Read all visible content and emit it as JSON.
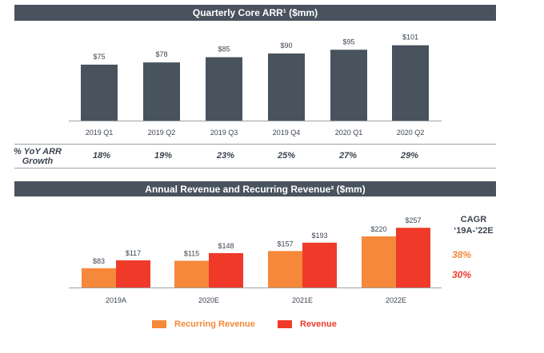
{
  "chart_data": [
    {
      "type": "bar",
      "title": "Quarterly Core ARR¹ ($mm)",
      "categories": [
        "2019 Q1",
        "2019 Q2",
        "2019 Q3",
        "2019 Q4",
        "2020 Q1",
        "2020 Q2"
      ],
      "values": [
        75,
        78,
        85,
        90,
        95,
        101
      ],
      "data_labels": [
        "$75",
        "$78",
        "$85",
        "$90",
        "$95",
        "$101"
      ],
      "color": "#48535e",
      "growth_row": {
        "label_line1": "% YoY ARR",
        "label_line2": "Growth",
        "values": [
          "18%",
          "19%",
          "23%",
          "25%",
          "27%",
          "29%"
        ]
      }
    },
    {
      "type": "bar",
      "title": "Annual Revenue and Recurring Revenue² ($mm)",
      "categories": [
        "2019A",
        "2020E",
        "2021E",
        "2022E"
      ],
      "series": [
        {
          "name": "Recurring Revenue",
          "values": [
            83,
            115,
            157,
            220
          ],
          "data_labels": [
            "$83",
            "$115",
            "$157",
            "$220"
          ],
          "color": "#f5883a"
        },
        {
          "name": "Revenue",
          "values": [
            117,
            148,
            193,
            257
          ],
          "data_labels": [
            "$117",
            "$148",
            "$193",
            "$257"
          ],
          "color": "#ef3a2a"
        }
      ],
      "cagr": {
        "title_line1": "CAGR",
        "title_line2": "‘19A-’22E",
        "recurring": "38%",
        "revenue": "30%"
      }
    }
  ]
}
